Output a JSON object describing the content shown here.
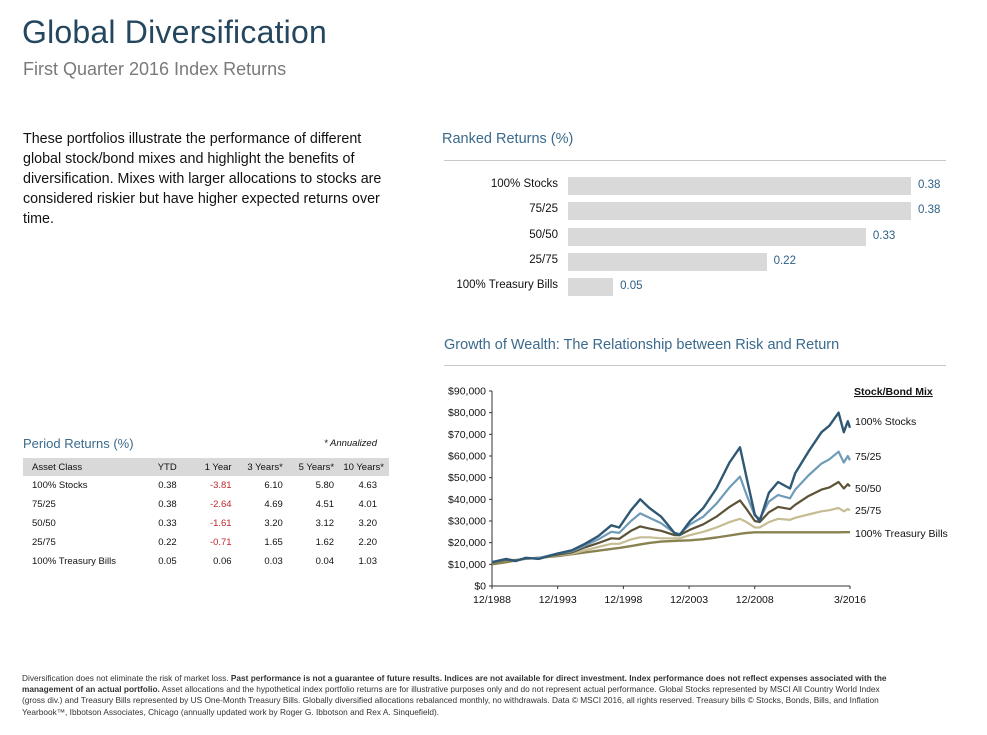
{
  "header": {
    "title": "Global Diversification",
    "subtitle": "First Quarter 2016 Index Returns"
  },
  "intro_text": "These portfolios illustrate the performance of different global stock/bond mixes and highlight the benefits of diversification. Mixes with larger allocations to stocks are considered riskier but have higher expected returns over time.",
  "ranked_returns": {
    "title": "Ranked Returns (%)"
  },
  "growth": {
    "title": "Growth of Wealth: The Relationship between Risk and Return"
  },
  "period_returns": {
    "title": "Period Returns (%)",
    "note": "* Annualized",
    "columns": [
      "Asset Class",
      "YTD",
      "1 Year",
      "3 Years*",
      "5 Years*",
      "10 Years*"
    ],
    "rows": [
      [
        "100% Stocks",
        "0.38",
        "-3.81",
        "6.10",
        "5.80",
        "4.63"
      ],
      [
        "75/25",
        "0.38",
        "-2.64",
        "4.69",
        "4.51",
        "4.01"
      ],
      [
        "50/50",
        "0.33",
        "-1.61",
        "3.20",
        "3.12",
        "3.20"
      ],
      [
        "25/75",
        "0.22",
        "-0.71",
        "1.65",
        "1.62",
        "2.20"
      ],
      [
        "100% Treasury Bills",
        "0.05",
        "0.06",
        "0.03",
        "0.04",
        "1.03"
      ]
    ]
  },
  "disclaimer": {
    "part1": "Diversification does not eliminate the risk of market loss. ",
    "part2_bold": "Past performance is not a guarantee of future results. Indices are not available for direct investment. Index performance does not reflect expenses associated with the management of an actual portfolio.",
    "part3": " Asset allocations and the hypothetical index portfolio returns are for illustrative purposes only and do not represent actual performance. Global Stocks represented by MSCI All Country World Index (gross div.) and Treasury Bills represented by US One-Month Treasury Bills. Globally diversified allocations rebalanced monthly, no withdrawals. Data © MSCI 2016, all rights reserved. Treasury bills © Stocks, Bonds, Bills, and Inflation Yearbook™, Ibbotson Associates, Chicago (annually updated work by Roger G. Ibbotson and Rex A. Sinquefield)."
  },
  "colors": {
    "accent": "#24475f",
    "section": "#3a6a8c",
    "bar": "#d9d9d9",
    "negative": "#c0272d",
    "stocks": "#2f5874",
    "mix75": "#6f9bb8",
    "mix50": "#5c5236",
    "mix25": "#c6bc93",
    "tbills": "#888251"
  },
  "chart_data": [
    {
      "type": "bar",
      "orientation": "horizontal",
      "title": "Ranked Returns (%)",
      "categories": [
        "100% Stocks",
        "75/25",
        "50/50",
        "25/75",
        "100% Treasury Bills"
      ],
      "values": [
        0.38,
        0.38,
        0.33,
        0.22,
        0.05
      ],
      "value_labels": [
        "0.38",
        "0.38",
        "0.33",
        "0.22",
        "0.05"
      ],
      "xlim": [
        0,
        0.4
      ]
    },
    {
      "type": "line",
      "title": "Growth of Wealth: The Relationship between Risk and Return",
      "legend_title": "Stock/Bond Mix",
      "ylim": [
        0,
        90000
      ],
      "y_ticks": [
        0,
        10000,
        20000,
        30000,
        40000,
        50000,
        60000,
        70000,
        80000,
        90000
      ],
      "y_tick_labels": [
        "$0",
        "$10,000",
        "$20,000",
        "$30,000",
        "$40,000",
        "$50,000",
        "$60,000",
        "$70,000",
        "$80,000",
        "$90,000"
      ],
      "xlim": [
        1988.92,
        2016.17
      ],
      "x_ticks": [
        1988.92,
        1993.92,
        1998.92,
        2003.92,
        2008.92,
        2016.17
      ],
      "x_tick_labels": [
        "12/1988",
        "12/1993",
        "12/1998",
        "12/2003",
        "12/2008",
        "3/2016"
      ],
      "x": [
        1988.92,
        1990.0,
        1990.7,
        1991.5,
        1992.5,
        1993.92,
        1995.0,
        1996.0,
        1997.0,
        1998.0,
        1998.6,
        1999.5,
        2000.2,
        2000.9,
        2001.8,
        2002.8,
        2003.2,
        2004.0,
        2005.0,
        2006.0,
        2007.0,
        2007.8,
        2008.3,
        2008.92,
        2009.3,
        2010.0,
        2010.7,
        2011.6,
        2012.0,
        2013.0,
        2014.0,
        2014.6,
        2015.3,
        2015.7,
        2016.0,
        2016.17
      ],
      "series": [
        {
          "name": "100% Stocks",
          "values": [
            11000,
            12500,
            11500,
            13000,
            12500,
            15000,
            16500,
            19500,
            23000,
            28000,
            27000,
            35000,
            40000,
            36000,
            32000,
            24500,
            23500,
            30000,
            36000,
            45000,
            57000,
            64000,
            50000,
            33000,
            30000,
            43000,
            48000,
            45000,
            52000,
            62000,
            71000,
            74000,
            80000,
            71000,
            76000,
            73000
          ]
        },
        {
          "name": "75/25",
          "values": [
            11000,
            12300,
            11700,
            12800,
            13000,
            15000,
            16000,
            18700,
            21500,
            25000,
            24500,
            30000,
            33500,
            31500,
            29000,
            24500,
            24000,
            28500,
            32000,
            38000,
            45500,
            50500,
            42000,
            32500,
            31000,
            39000,
            42000,
            40500,
            44500,
            51000,
            56500,
            58500,
            62000,
            57000,
            60000,
            58000
          ]
        },
        {
          "name": "50/50",
          "values": [
            11000,
            12100,
            11900,
            12600,
            13000,
            14500,
            15500,
            17800,
            19800,
            22000,
            21800,
            25500,
            27500,
            26500,
            25500,
            23500,
            23500,
            26000,
            28500,
            32000,
            36500,
            39500,
            35500,
            30000,
            29500,
            34000,
            36500,
            35500,
            37500,
            41500,
            44500,
            45500,
            48000,
            45000,
            47000,
            46000
          ]
        },
        {
          "name": "25/75",
          "values": [
            11000,
            12000,
            12100,
            12500,
            13000,
            14200,
            15000,
            16500,
            18000,
            19500,
            19500,
            21500,
            22500,
            22500,
            22000,
            22000,
            22000,
            23500,
            25000,
            27000,
            29500,
            31000,
            29500,
            27000,
            27000,
            29500,
            31000,
            30500,
            31500,
            33000,
            34500,
            35000,
            36000,
            34500,
            35500,
            35000
          ]
        },
        {
          "name": "100% Treasury Bills",
          "values": [
            10000,
            11000,
            11800,
            12600,
            13000,
            13800,
            14700,
            15500,
            16300,
            17100,
            17600,
            18400,
            19200,
            19900,
            20500,
            20800,
            20900,
            21100,
            21600,
            22400,
            23300,
            24100,
            24500,
            24800,
            24800,
            24800,
            24800,
            24800,
            24800,
            24800,
            24800,
            24800,
            24800,
            24850,
            24850,
            24850
          ]
        }
      ]
    }
  ]
}
